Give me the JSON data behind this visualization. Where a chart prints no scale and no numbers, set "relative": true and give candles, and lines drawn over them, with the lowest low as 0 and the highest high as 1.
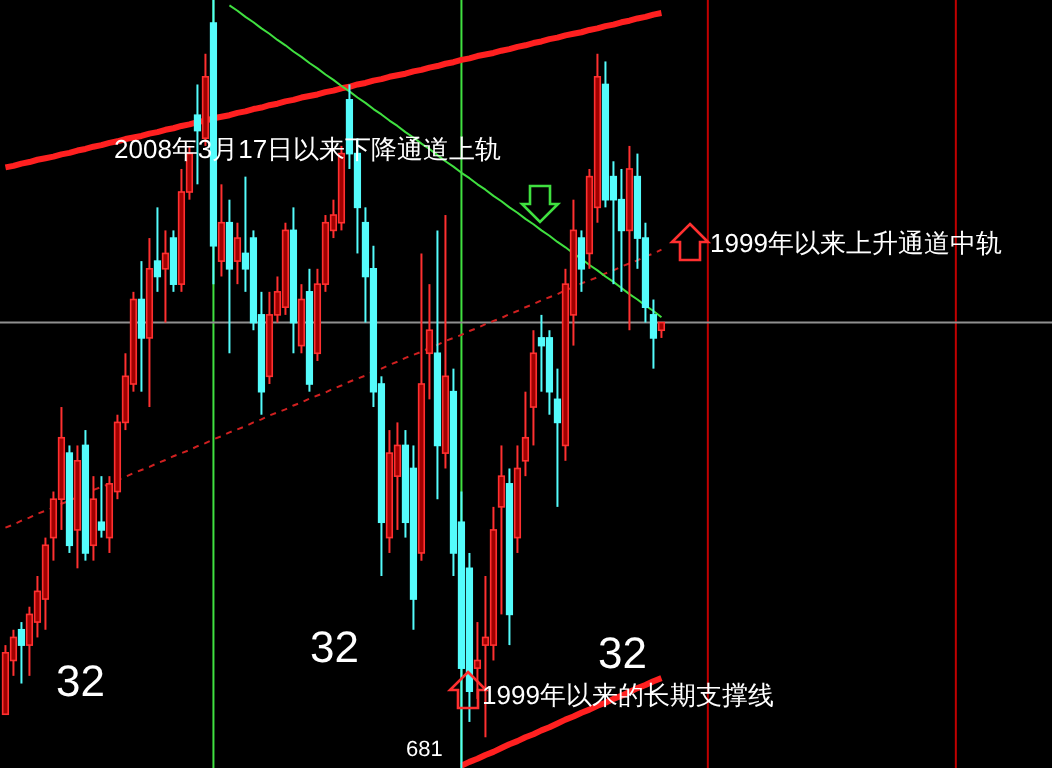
{
  "chart_data": {
    "type": "candlestick",
    "relative": true,
    "categories": [
      null,
      null,
      null,
      null,
      null,
      null,
      null,
      null,
      null,
      null,
      null,
      null,
      null,
      null,
      null,
      null,
      null,
      null,
      null,
      null,
      null,
      null,
      null,
      null,
      null,
      null,
      null,
      null,
      null,
      null,
      null,
      null,
      null,
      null,
      null,
      null,
      null,
      null,
      null,
      null,
      null,
      null,
      null,
      null,
      null,
      null,
      null,
      null,
      null,
      null,
      null,
      null,
      null,
      null,
      null,
      null,
      null,
      null,
      null,
      null,
      null,
      null,
      null,
      null,
      null,
      null,
      null,
      null,
      null,
      null,
      null,
      null,
      null,
      null,
      null,
      null,
      null,
      null,
      null,
      null,
      null,
      null,
      null
    ],
    "ohlc": [
      [
        0.07,
        0.16,
        0.07,
        0.15
      ],
      [
        0.14,
        0.18,
        0.12,
        0.17
      ],
      [
        0.18,
        0.19,
        0.11,
        0.16
      ],
      [
        0.16,
        0.21,
        0.12,
        0.2
      ],
      [
        0.19,
        0.25,
        0.17,
        0.23
      ],
      [
        0.22,
        0.3,
        0.18,
        0.29
      ],
      [
        0.3,
        0.36,
        0.27,
        0.35
      ],
      [
        0.35,
        0.47,
        0.31,
        0.43
      ],
      [
        0.41,
        0.42,
        0.28,
        0.29
      ],
      [
        0.31,
        0.42,
        0.26,
        0.4
      ],
      [
        0.42,
        0.44,
        0.27,
        0.28
      ],
      [
        0.29,
        0.38,
        0.27,
        0.35
      ],
      [
        0.32,
        0.38,
        0.3,
        0.31
      ],
      [
        0.3,
        0.38,
        0.28,
        0.37
      ],
      [
        0.36,
        0.46,
        0.35,
        0.45
      ],
      [
        0.45,
        0.54,
        0.44,
        0.51
      ],
      [
        0.5,
        0.62,
        0.49,
        0.61
      ],
      [
        0.61,
        0.66,
        0.49,
        0.56
      ],
      [
        0.56,
        0.69,
        0.47,
        0.65
      ],
      [
        0.66,
        0.73,
        0.62,
        0.64
      ],
      [
        0.65,
        0.7,
        0.58,
        0.67
      ],
      [
        0.69,
        0.7,
        0.62,
        0.63
      ],
      [
        0.63,
        0.78,
        0.62,
        0.75
      ],
      [
        0.75,
        0.81,
        0.74,
        0.8
      ],
      [
        0.85,
        0.89,
        0.76,
        0.83
      ],
      [
        0.82,
        0.93,
        0.81,
        0.9
      ],
      [
        0.97,
        1.0,
        0.63,
        0.68
      ],
      [
        0.66,
        0.76,
        0.64,
        0.71
      ],
      [
        0.71,
        0.74,
        0.54,
        0.65
      ],
      [
        0.66,
        0.71,
        0.63,
        0.69
      ],
      [
        0.67,
        0.77,
        0.62,
        0.65
      ],
      [
        0.69,
        0.7,
        0.57,
        0.58
      ],
      [
        0.59,
        0.62,
        0.46,
        0.49
      ],
      [
        0.51,
        0.62,
        0.5,
        0.59
      ],
      [
        0.59,
        0.64,
        0.58,
        0.62
      ],
      [
        0.6,
        0.71,
        0.59,
        0.7
      ],
      [
        0.7,
        0.73,
        0.54,
        0.58
      ],
      [
        0.55,
        0.63,
        0.54,
        0.61
      ],
      [
        0.62,
        0.65,
        0.49,
        0.5
      ],
      [
        0.54,
        0.65,
        0.53,
        0.63
      ],
      [
        0.63,
        0.72,
        0.62,
        0.71
      ],
      [
        0.7,
        0.74,
        0.69,
        0.72
      ],
      [
        0.71,
        0.81,
        0.7,
        0.8
      ],
      [
        0.87,
        0.89,
        0.78,
        0.8
      ],
      [
        0.8,
        0.82,
        0.67,
        0.73
      ],
      [
        0.71,
        0.73,
        0.58,
        0.64
      ],
      [
        0.65,
        0.68,
        0.47,
        0.49
      ],
      [
        0.5,
        0.51,
        0.25,
        0.32
      ],
      [
        0.3,
        0.44,
        0.28,
        0.41
      ],
      [
        0.38,
        0.45,
        0.31,
        0.42
      ],
      [
        0.42,
        0.44,
        0.3,
        0.32
      ],
      [
        0.39,
        0.42,
        0.18,
        0.22
      ],
      [
        0.28,
        0.67,
        0.27,
        0.5
      ],
      [
        0.54,
        0.63,
        0.48,
        0.57
      ],
      [
        0.54,
        0.7,
        0.35,
        0.42
      ],
      [
        0.41,
        0.72,
        0.39,
        0.51
      ],
      [
        0.49,
        0.52,
        0.25,
        0.28
      ],
      [
        0.32,
        0.36,
        0.0,
        0.13
      ],
      [
        0.26,
        0.28,
        0.06,
        0.1
      ],
      [
        0.13,
        0.19,
        0.09,
        0.14
      ],
      [
        0.16,
        0.25,
        0.04,
        0.17
      ],
      [
        0.16,
        0.34,
        0.14,
        0.31
      ],
      [
        0.34,
        0.42,
        0.2,
        0.38
      ],
      [
        0.37,
        0.39,
        0.16,
        0.2
      ],
      [
        0.3,
        0.42,
        0.28,
        0.39
      ],
      [
        0.4,
        0.49,
        0.38,
        0.43
      ],
      [
        0.47,
        0.57,
        0.42,
        0.54
      ],
      [
        0.56,
        0.59,
        0.49,
        0.55
      ],
      [
        0.56,
        0.57,
        0.46,
        0.49
      ],
      [
        0.48,
        0.52,
        0.34,
        0.45
      ],
      [
        0.42,
        0.65,
        0.4,
        0.63
      ],
      [
        0.59,
        0.74,
        0.55,
        0.7
      ],
      [
        0.69,
        0.7,
        0.62,
        0.65
      ],
      [
        0.67,
        0.78,
        0.65,
        0.77
      ],
      [
        0.73,
        0.93,
        0.71,
        0.9
      ],
      [
        0.89,
        0.92,
        0.73,
        0.74
      ],
      [
        0.77,
        0.79,
        0.63,
        0.74
      ],
      [
        0.74,
        0.78,
        0.62,
        0.7
      ],
      [
        0.7,
        0.81,
        0.57,
        0.78
      ],
      [
        0.77,
        0.8,
        0.65,
        0.69
      ],
      [
        0.69,
        0.71,
        0.58,
        0.6
      ],
      [
        0.59,
        0.61,
        0.52,
        0.56
      ],
      [
        0.57,
        0.58,
        0.56,
        0.58
      ]
    ],
    "series": [
      {
        "type": "line",
        "color": "#ff2020",
        "values": [
          0.782,
          0.784,
          0.787,
          0.789,
          0.792,
          0.794,
          0.796,
          0.799,
          0.801,
          0.804,
          0.806,
          0.809,
          0.811,
          0.814,
          0.816,
          0.819,
          0.821,
          0.823,
          0.826,
          0.828,
          0.831,
          0.833,
          0.836,
          0.838,
          0.841,
          0.843,
          0.846,
          0.848,
          0.85,
          0.853,
          0.855,
          0.858,
          0.86,
          0.863,
          0.865,
          0.868,
          0.87,
          0.873,
          0.875,
          0.877,
          0.88,
          0.882,
          0.885,
          0.887,
          0.89,
          0.892,
          0.895,
          0.897,
          0.9,
          0.902,
          0.904,
          0.907,
          0.909,
          0.912,
          0.914,
          0.917,
          0.919,
          0.922,
          0.924,
          0.927,
          0.929,
          0.931,
          0.934,
          0.936,
          0.939,
          0.941,
          0.944,
          0.946,
          0.949,
          0.951,
          0.954,
          0.956,
          0.958,
          0.961,
          0.963,
          0.966,
          0.968,
          0.971,
          0.973,
          0.976,
          0.978,
          0.981,
          0.983
        ]
      },
      {
        "type": "line",
        "color": "#ff2020",
        "values": [
          null,
          null,
          null,
          null,
          null,
          null,
          null,
          null,
          null,
          null,
          null,
          null,
          null,
          null,
          null,
          null,
          null,
          null,
          null,
          null,
          null,
          null,
          null,
          null,
          null,
          null,
          null,
          null,
          null,
          null,
          null,
          null,
          null,
          null,
          null,
          null,
          null,
          null,
          null,
          null,
          null,
          null,
          null,
          null,
          null,
          null,
          null,
          null,
          null,
          null,
          null,
          null,
          null,
          null,
          null,
          null,
          null,
          0.003,
          0.008,
          0.012,
          0.017,
          0.021,
          0.026,
          0.031,
          0.035,
          0.04,
          0.044,
          0.049,
          0.053,
          0.058,
          0.063,
          0.067,
          0.072,
          0.076,
          0.081,
          0.085,
          0.09,
          0.094,
          0.099,
          0.104,
          0.108,
          0.113,
          0.117
        ]
      },
      {
        "type": "line",
        "color": "#d02020",
        "line_style": "dashed",
        "values": [
          0.313,
          0.317,
          0.322,
          0.326,
          0.331,
          0.335,
          0.339,
          0.344,
          0.348,
          0.353,
          0.357,
          0.362,
          0.366,
          0.37,
          0.375,
          0.379,
          0.384,
          0.388,
          0.392,
          0.397,
          0.401,
          0.406,
          0.41,
          0.414,
          0.419,
          0.423,
          0.428,
          0.432,
          0.437,
          0.441,
          0.445,
          0.45,
          0.454,
          0.459,
          0.463,
          0.467,
          0.472,
          0.476,
          0.481,
          0.485,
          0.489,
          0.494,
          0.498,
          0.503,
          0.507,
          0.511,
          0.516,
          0.52,
          0.525,
          0.529,
          0.534,
          0.538,
          0.542,
          0.547,
          0.551,
          0.556,
          0.56,
          0.564,
          0.569,
          0.573,
          0.578,
          0.582,
          0.586,
          0.591,
          0.595,
          0.6,
          0.604,
          0.609,
          0.613,
          0.617,
          0.622,
          0.626,
          0.631,
          0.635,
          0.639,
          0.644,
          0.648,
          0.653,
          0.657,
          0.661,
          0.666,
          0.67,
          0.675
        ]
      },
      {
        "type": "line",
        "color": "#40e040",
        "values": [
          null,
          null,
          null,
          null,
          null,
          null,
          null,
          null,
          null,
          null,
          null,
          null,
          null,
          null,
          null,
          null,
          null,
          null,
          null,
          null,
          null,
          null,
          null,
          null,
          null,
          null,
          null,
          null,
          0.993,
          0.986,
          0.978,
          0.971,
          0.963,
          0.956,
          0.948,
          0.941,
          0.933,
          0.926,
          0.918,
          0.911,
          0.903,
          0.896,
          0.888,
          0.881,
          0.873,
          0.866,
          0.858,
          0.851,
          0.843,
          0.836,
          0.828,
          0.821,
          0.813,
          0.806,
          0.798,
          0.79,
          0.783,
          0.775,
          0.768,
          0.76,
          0.753,
          0.745,
          0.738,
          0.73,
          0.723,
          0.715,
          0.708,
          0.7,
          0.693,
          0.685,
          0.678,
          0.67,
          0.663,
          0.655,
          0.648,
          0.64,
          0.633,
          0.625,
          0.617,
          0.61,
          0.602,
          0.595,
          0.587
        ]
      }
    ],
    "ref_lines": [
      {
        "axis": "y",
        "value": 0.58,
        "color": "#909090"
      }
    ],
    "annotations": [
      "2008年3月17日以来下降通道上轨",
      "1999年以来上升通道中轨",
      "1999年以来的长期支撑线",
      "32",
      "32",
      "32",
      "681"
    ]
  }
}
